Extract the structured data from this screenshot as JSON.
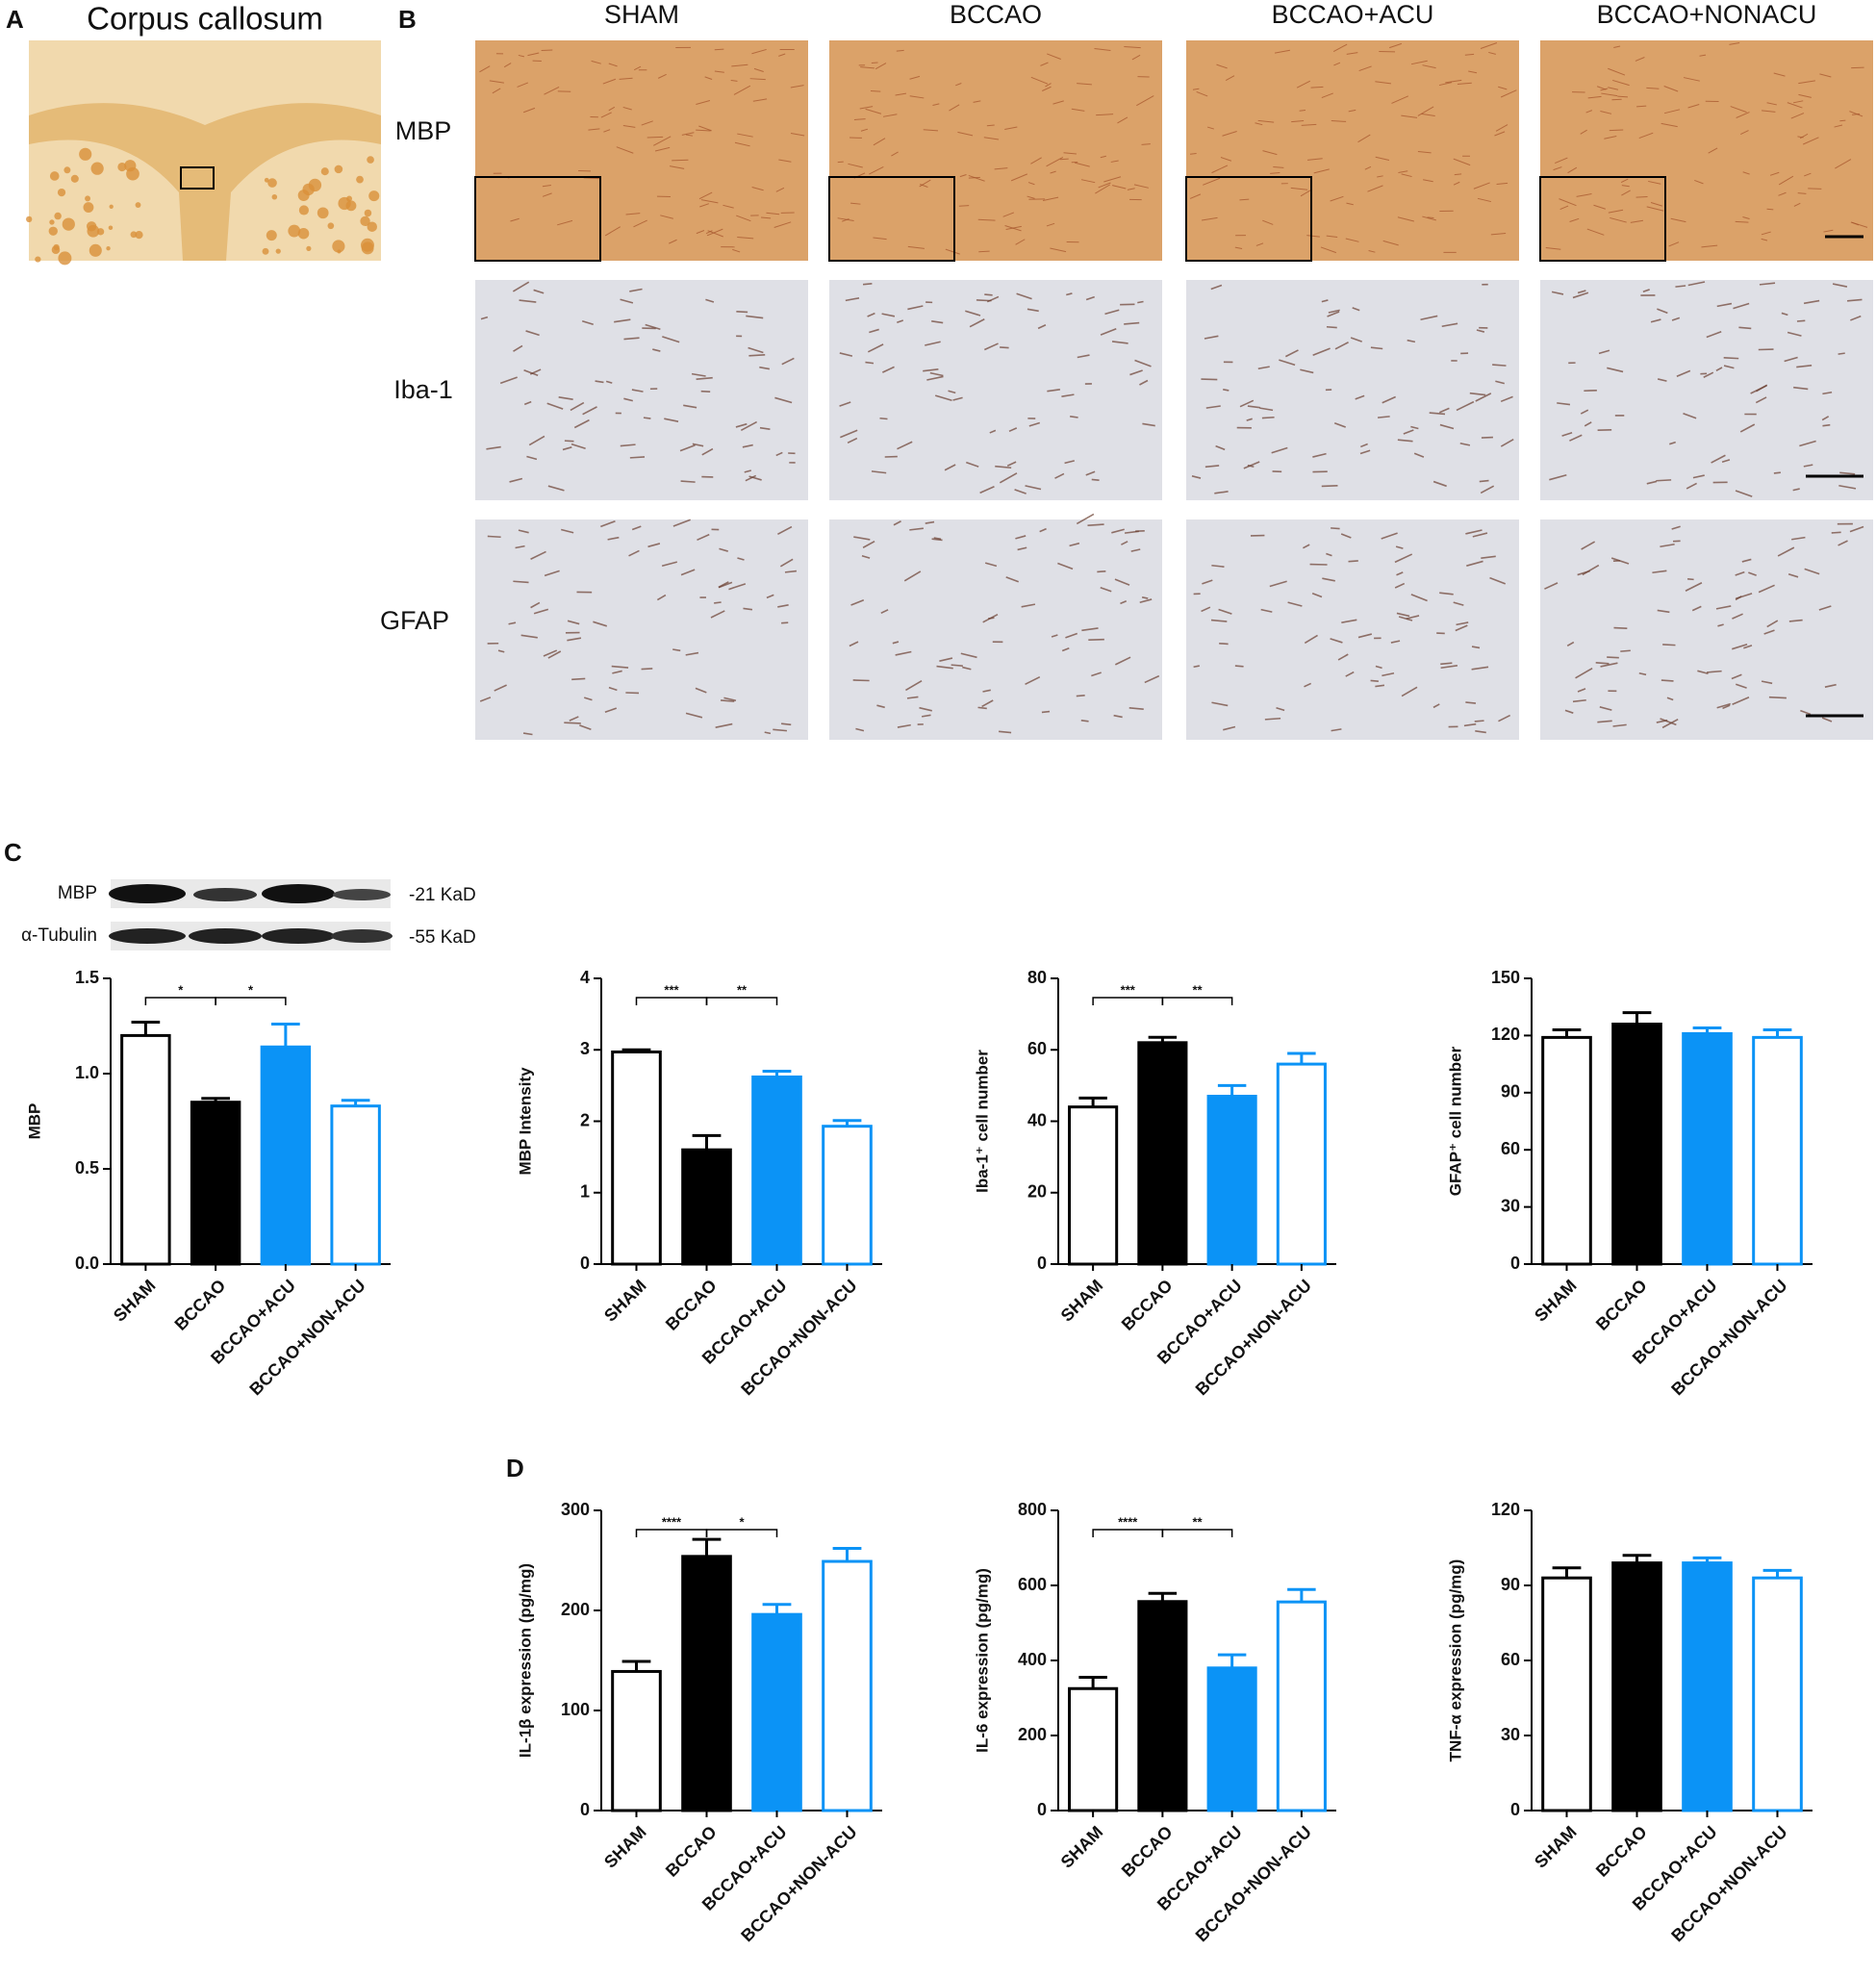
{
  "panel_labels": [
    "A",
    "B",
    "C",
    "D"
  ],
  "panel_a": {
    "title": "Corpus callosum"
  },
  "panel_b": {
    "columns": [
      "SHAM",
      "BCCAO",
      "BCCAO+ACU",
      "BCCAO+NONACU"
    ],
    "rows": [
      "MBP",
      "Iba-1",
      "GFAP"
    ]
  },
  "western_blot": {
    "proteins": [
      "MBP",
      "α-Tubulin"
    ],
    "sizes": [
      "-21 KaD",
      "-55 KaD"
    ]
  },
  "chart_data": [
    {
      "type": "bar",
      "y_label": "MBP",
      "categories": [
        "SHAM",
        "BCCAO",
        "BCCAO+ACU",
        "BCCAO+NON-ACU"
      ],
      "values": [
        1.2,
        0.85,
        1.14,
        0.83
      ],
      "errors": [
        0.07,
        0.02,
        0.12,
        0.03
      ],
      "fills": [
        "#ffffff",
        "#000000",
        "#0b93f6",
        "#ffffff"
      ],
      "strokes": [
        "#000000",
        "#000000",
        "#0b93f6",
        "#0b93f6"
      ],
      "ylim": [
        0,
        1.5
      ],
      "yticks": [
        {
          "value": 0,
          "label": "0.0"
        },
        {
          "value": 0.5,
          "label": "0.5"
        },
        {
          "value": 1,
          "label": "1.0"
        },
        {
          "value": 1.5,
          "label": "1.5"
        }
      ],
      "significance": [
        {
          "from": 0,
          "to": 1,
          "label": "*"
        },
        {
          "from": 1,
          "to": 2,
          "label": "*"
        }
      ]
    },
    {
      "type": "bar",
      "y_label": "MBP Intensity",
      "categories": [
        "SHAM",
        "BCCAO",
        "BCCAO+ACU",
        "BCCAO+NON-ACU"
      ],
      "values": [
        2.97,
        1.6,
        2.62,
        1.93
      ],
      "errors": [
        0.03,
        0.2,
        0.08,
        0.08
      ],
      "fills": [
        "#ffffff",
        "#000000",
        "#0b93f6",
        "#ffffff"
      ],
      "strokes": [
        "#000000",
        "#000000",
        "#0b93f6",
        "#0b93f6"
      ],
      "ylim": [
        0,
        4
      ],
      "yticks": [
        0,
        1,
        2,
        3,
        4
      ],
      "significance": [
        {
          "from": 0,
          "to": 1,
          "label": "***"
        },
        {
          "from": 1,
          "to": 2,
          "label": "**"
        }
      ]
    },
    {
      "type": "bar",
      "y_label": "Iba-1⁺ cell number",
      "categories": [
        "SHAM",
        "BCCAO",
        "BCCAO+ACU",
        "BCCAO+NON-ACU"
      ],
      "values": [
        44,
        62,
        47,
        56
      ],
      "errors": [
        2.5,
        1.5,
        3,
        3
      ],
      "fills": [
        "#ffffff",
        "#000000",
        "#0b93f6",
        "#ffffff"
      ],
      "strokes": [
        "#000000",
        "#000000",
        "#0b93f6",
        "#0b93f6"
      ],
      "ylim": [
        0,
        80
      ],
      "yticks": [
        0,
        20,
        40,
        60,
        80
      ],
      "significance": [
        {
          "from": 0,
          "to": 1,
          "label": "***"
        },
        {
          "from": 1,
          "to": 2,
          "label": "**"
        }
      ]
    },
    {
      "type": "bar",
      "y_label": "GFAP⁺ cell number",
      "categories": [
        "SHAM",
        "BCCAO",
        "BCCAO+ACU",
        "BCCAO+NON-ACU"
      ],
      "values": [
        119,
        126,
        121,
        119
      ],
      "errors": [
        4,
        6,
        3,
        4
      ],
      "fills": [
        "#ffffff",
        "#000000",
        "#0b93f6",
        "#ffffff"
      ],
      "strokes": [
        "#000000",
        "#000000",
        "#0b93f6",
        "#0b93f6"
      ],
      "ylim": [
        0,
        150
      ],
      "yticks": [
        0,
        30,
        60,
        90,
        120,
        150
      ],
      "significance": []
    },
    {
      "type": "bar",
      "y_label": "IL-1β expression (pg/mg)",
      "categories": [
        "SHAM",
        "BCCAO",
        "BCCAO+ACU",
        "BCCAO+NON-ACU"
      ],
      "values": [
        139,
        254,
        196,
        249
      ],
      "errors": [
        10,
        17,
        10,
        13
      ],
      "fills": [
        "#ffffff",
        "#000000",
        "#0b93f6",
        "#ffffff"
      ],
      "strokes": [
        "#000000",
        "#000000",
        "#0b93f6",
        "#0b93f6"
      ],
      "ylim": [
        0,
        300
      ],
      "yticks": [
        0,
        100,
        200,
        300
      ],
      "significance": [
        {
          "from": 0,
          "to": 1,
          "label": "****"
        },
        {
          "from": 1,
          "to": 2,
          "label": "*"
        }
      ]
    },
    {
      "type": "bar",
      "y_label": "IL-6 expression (pg/mg)",
      "categories": [
        "SHAM",
        "BCCAO",
        "BCCAO+ACU",
        "BCCAO+NON-ACU"
      ],
      "values": [
        325,
        557,
        380,
        556
      ],
      "errors": [
        30,
        22,
        35,
        33
      ],
      "fills": [
        "#ffffff",
        "#000000",
        "#0b93f6",
        "#ffffff"
      ],
      "strokes": [
        "#000000",
        "#000000",
        "#0b93f6",
        "#0b93f6"
      ],
      "ylim": [
        0,
        800
      ],
      "yticks": [
        0,
        200,
        400,
        600,
        800
      ],
      "significance": [
        {
          "from": 0,
          "to": 1,
          "label": "****"
        },
        {
          "from": 1,
          "to": 2,
          "label": "**"
        }
      ]
    },
    {
      "type": "bar",
      "y_label": "TNF-α expression (pg/mg)",
      "categories": [
        "SHAM",
        "BCCAO",
        "BCCAO+ACU",
        "BCCAO+NON-ACU"
      ],
      "values": [
        93,
        99,
        99,
        93
      ],
      "errors": [
        4,
        3,
        2,
        3
      ],
      "fills": [
        "#ffffff",
        "#000000",
        "#0b93f6",
        "#ffffff"
      ],
      "strokes": [
        "#000000",
        "#000000",
        "#0b93f6",
        "#0b93f6"
      ],
      "ylim": [
        0,
        120
      ],
      "yticks": [
        0,
        30,
        60,
        90,
        120
      ],
      "significance": []
    }
  ]
}
